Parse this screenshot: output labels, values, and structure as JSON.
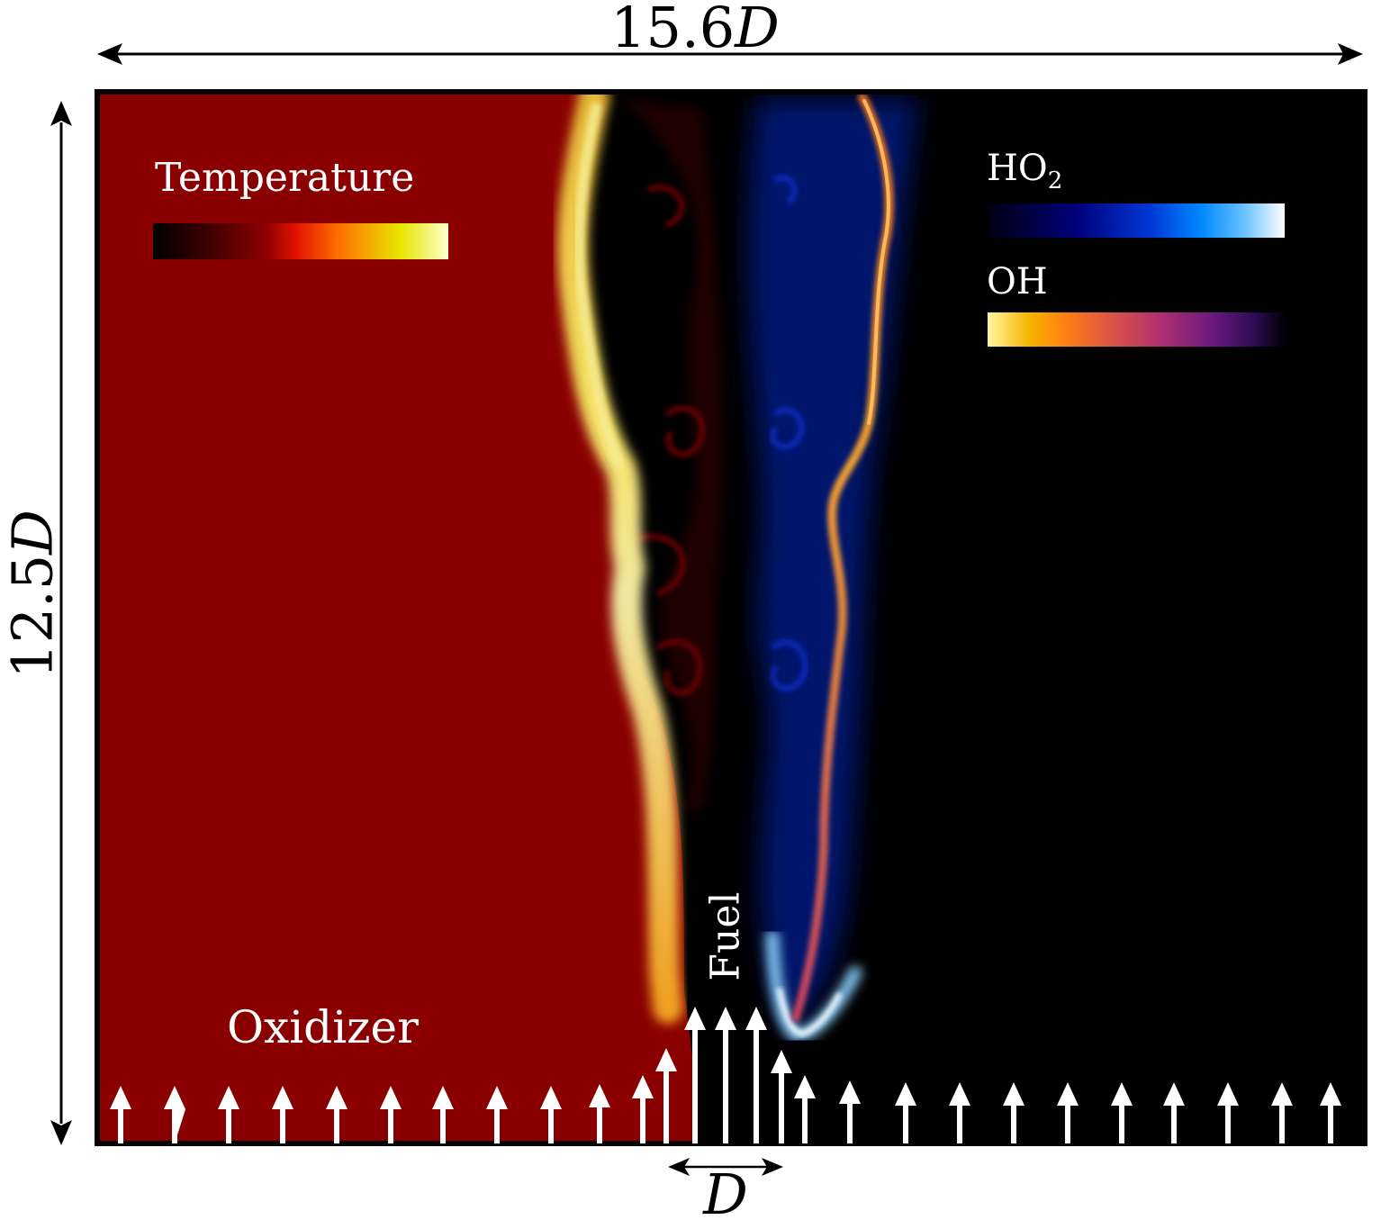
{
  "dimensions": {
    "width_label_value": "15.6",
    "width_label_symbol": "D",
    "height_label_value": "12.5",
    "height_label_symbol": "D",
    "inlet_label_symbol": "D"
  },
  "legends": {
    "temperature": "Temperature",
    "ho2_main": "HO",
    "ho2_sub": "2",
    "oh": "OH"
  },
  "labels": {
    "oxidizer": "Oxidizer",
    "fuel": "Fuel"
  },
  "colors": {
    "oxidizer_region": "#8a0000",
    "fuel_region": "#000000",
    "flame_sheet": "#f0d040",
    "ho2_cloud": "#001a90",
    "oh_sheet": "#e07818",
    "arrow": "#ffffff"
  }
}
